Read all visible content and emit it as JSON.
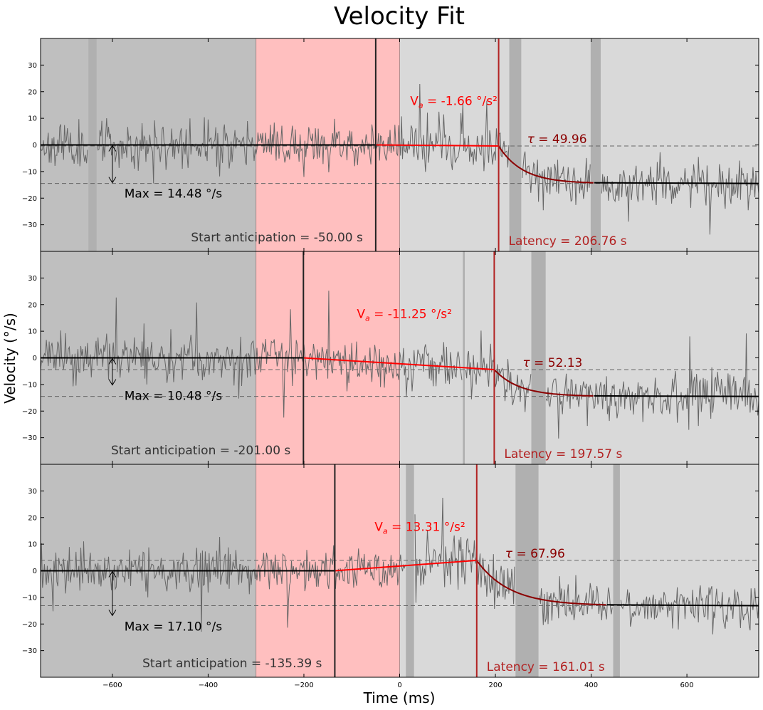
{
  "chart_data": {
    "type": "line",
    "title": "Velocity Fit",
    "xlabel": "Time (ms)",
    "ylabel": "Velocity (°/s)",
    "xlim": [
      -750,
      750
    ],
    "ylim": [
      -40,
      40
    ],
    "x_ticks": [
      -600,
      -400,
      -200,
      0,
      200,
      400,
      600
    ],
    "y_ticks": [
      -30,
      -20,
      -10,
      0,
      10,
      20,
      30
    ],
    "shaded_region": {
      "fixation_end": -300,
      "red_start": -300,
      "red_end": 0
    },
    "colors": {
      "fixation": "#bfbfbf",
      "anticipation_window": "#ffbfbf",
      "pursuit": "#d9d9d9",
      "missing_data": "#b0b0b0",
      "raw": "#666666",
      "fit": "#000000",
      "anticip_fit": "#ff0000",
      "tau_fit": "#8b0000",
      "latency_line": "#b22222",
      "latency_text": "#b22222",
      "va_text": "#ff0000",
      "tau_text": "#8b0000",
      "start_text": "#333333"
    },
    "panels": [
      {
        "start_anticipation": -50.0,
        "latency": 206.76,
        "tau": 49.96,
        "va": -1.66,
        "max": 14.48,
        "baseline": 0,
        "v_at_latency": -0.4,
        "steady": -14.48,
        "missing_data": [
          [
            -650,
            -633
          ],
          [
            229,
            254
          ],
          [
            399,
            420
          ]
        ],
        "seed": 11,
        "labels": {
          "max": "Max = 14.48 °/s",
          "start": "Start anticipation = -50.00 s",
          "latency": "Latency = 206.76 s",
          "va_prefix": "V",
          "va_sub": "a",
          "va_rest": " = -1.66 °/s²",
          "tau_sym": "τ",
          "tau_rest": " = 49.96"
        }
      },
      {
        "start_anticipation": -201.0,
        "latency": 197.57,
        "tau": 52.13,
        "va": -11.25,
        "max": 10.48,
        "baseline": 0,
        "v_at_latency": -4.4,
        "steady": -14.48,
        "missing_data": [
          [
            132,
            136
          ],
          [
            275,
            305
          ]
        ],
        "seed": 23,
        "labels": {
          "max": "Max = 10.48 °/s",
          "start": "Start anticipation = -201.00 s",
          "latency": "Latency = 197.57 s",
          "va_prefix": "V",
          "va_sub": "a",
          "va_rest": " = -11.25 °/s²",
          "tau_sym": "τ",
          "tau_rest": " = 52.13"
        }
      },
      {
        "start_anticipation": -135.39,
        "latency": 161.01,
        "tau": 67.96,
        "va": 13.31,
        "max": 17.1,
        "baseline": 0,
        "v_at_latency": 3.9,
        "steady": -13.1,
        "missing_data": [
          [
            13,
            30
          ],
          [
            242,
            290
          ],
          [
            446,
            460
          ]
        ],
        "seed": 37,
        "labels": {
          "max": "Max = 17.10 °/s",
          "start": "Start anticipation = -135.39 s",
          "latency": "Latency = 161.01 s",
          "va_prefix": "V",
          "va_sub": "a",
          "va_rest": " = 13.31 °/s²",
          "tau_sym": "τ",
          "tau_rest": " = 67.96"
        }
      }
    ]
  }
}
